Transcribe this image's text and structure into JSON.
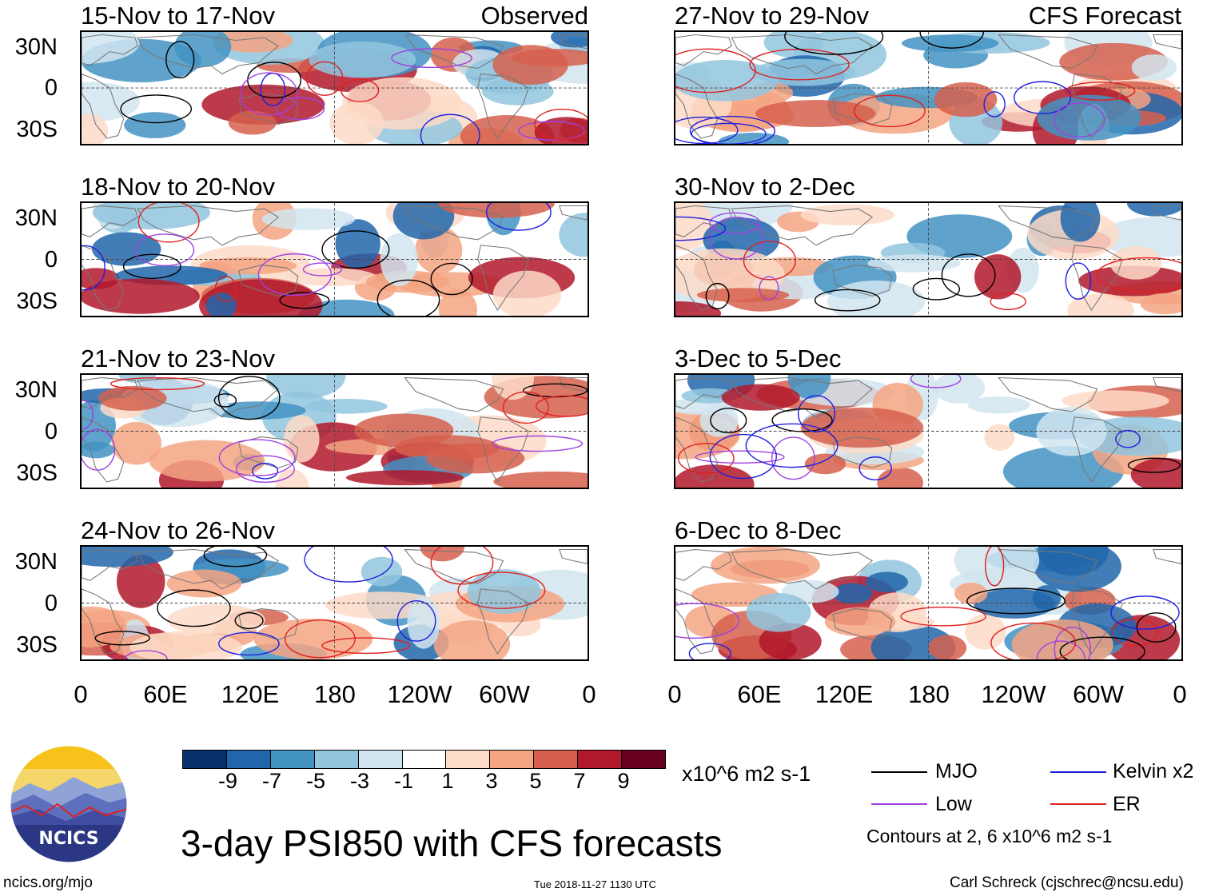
{
  "observed_label": "Observed",
  "forecast_label": "CFS Forecast",
  "left_panels": [
    {
      "title": "15-Nov to 17-Nov"
    },
    {
      "title": "18-Nov to 20-Nov"
    },
    {
      "title": "21-Nov to 23-Nov"
    },
    {
      "title": "24-Nov to 26-Nov"
    }
  ],
  "right_panels": [
    {
      "title": "27-Nov to 29-Nov"
    },
    {
      "title": "30-Nov to 2-Dec"
    },
    {
      "title": "3-Dec to 5-Dec"
    },
    {
      "title": "6-Dec to 8-Dec"
    }
  ],
  "y_axis": [
    "30N",
    "0",
    "30S"
  ],
  "x_axis": [
    "0",
    "60E",
    "120E",
    "180",
    "120W",
    "60W",
    "0"
  ],
  "colorbar": {
    "colors": [
      "#08306b",
      "#2166ac",
      "#4393c3",
      "#92c5de",
      "#d1e5f0",
      "#ffffff",
      "#fddbc7",
      "#f4a582",
      "#d6604d",
      "#b2182b",
      "#67001f"
    ],
    "ticks": [
      "-9",
      "-7",
      "-5",
      "-3",
      "-1",
      "1",
      "3",
      "5",
      "7",
      "9"
    ],
    "units": "x10^6 m2 s-1"
  },
  "legend": {
    "items": [
      {
        "label": "MJO",
        "color": "#000000"
      },
      {
        "label": "Kelvin x2",
        "color": "#1f1fdf"
      },
      {
        "label": "Low",
        "color": "#a040e0"
      },
      {
        "label": "ER",
        "color": "#e02020"
      }
    ],
    "note": "Contours at 2, 6 x10^6 m2 s-1"
  },
  "main_title": "3-day PSI850 with CFS forecasts",
  "logo_text": "NCICS",
  "footer": {
    "url": "ncics.org/mjo",
    "timestamp": "Tue 2018-11-27 1130 UTC",
    "credit": "Carl Schreck (cjschrec@ncsu.edu)"
  }
}
